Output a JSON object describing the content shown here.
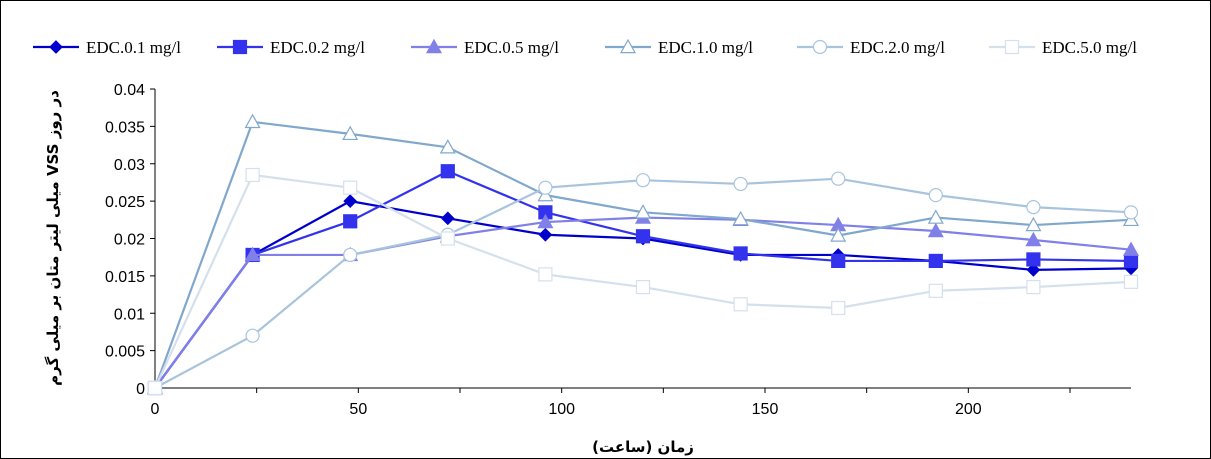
{
  "chart_data": {
    "type": "line",
    "title": "",
    "xlabel": "زمان (ساعت)",
    "ylabel": "میلی لیتر متان بر میلی گرم VSS در روز",
    "xlim": [
      0,
      240
    ],
    "ylim": [
      0,
      0.04
    ],
    "x_ticks": [
      0,
      50,
      100,
      150,
      200
    ],
    "y_ticks": [
      0,
      0.005,
      0.01,
      0.015,
      0.02,
      0.025,
      0.03,
      0.035,
      0.04
    ],
    "y_tick_labels": [
      "0",
      "0.005",
      "0.01",
      "0.015",
      "0.02",
      "0.025",
      "0.03",
      "0.035",
      "0.04"
    ],
    "x_tick_labels": [
      "0",
      "50",
      "100",
      "150",
      "200"
    ],
    "grid": false,
    "legend_position": "top",
    "x": [
      0,
      24,
      48,
      72,
      96,
      120,
      144,
      168,
      192,
      216,
      240
    ],
    "series": [
      {
        "name": "EDC.0.1 mg/l",
        "color": "#0000CC",
        "marker": "diamond",
        "fill": true,
        "values": [
          0,
          0.0178,
          0.025,
          0.0227,
          0.0205,
          0.02,
          0.0178,
          0.0178,
          0.017,
          0.0158,
          0.016
        ]
      },
      {
        "name": "EDC.0.2 mg/l",
        "color": "#3333EE",
        "marker": "square",
        "fill": true,
        "values": [
          0,
          0.0178,
          0.0223,
          0.029,
          0.0235,
          0.0203,
          0.018,
          0.017,
          0.017,
          0.0172,
          0.017
        ]
      },
      {
        "name": "EDC.0.5 mg/l",
        "color": "#8080E8",
        "marker": "triangle",
        "fill": true,
        "values": [
          0,
          0.0178,
          0.0178,
          0.0203,
          0.0222,
          0.0228,
          0.0225,
          0.0218,
          0.021,
          0.0198,
          0.0185
        ]
      },
      {
        "name": "EDC.1.0 mg/l",
        "color": "#80A8CC",
        "marker": "triangle",
        "fill": false,
        "values": [
          0,
          0.0356,
          0.034,
          0.0322,
          0.0258,
          0.0235,
          0.0226,
          0.0204,
          0.0228,
          0.0218,
          0.0225
        ]
      },
      {
        "name": "EDC.2.0 mg/l",
        "color": "#A8C4DC",
        "marker": "circle",
        "fill": false,
        "values": [
          0,
          0.007,
          0.0178,
          0.0205,
          0.0268,
          0.0278,
          0.0273,
          0.028,
          0.0258,
          0.0242,
          0.0235
        ]
      },
      {
        "name": "EDC.5.0 mg/l",
        "color": "#D4E0EC",
        "marker": "square",
        "fill": false,
        "values": [
          0,
          0.0285,
          0.0268,
          0.02,
          0.0152,
          0.0135,
          0.0112,
          0.0107,
          0.013,
          0.0135,
          0.0142
        ]
      }
    ]
  }
}
